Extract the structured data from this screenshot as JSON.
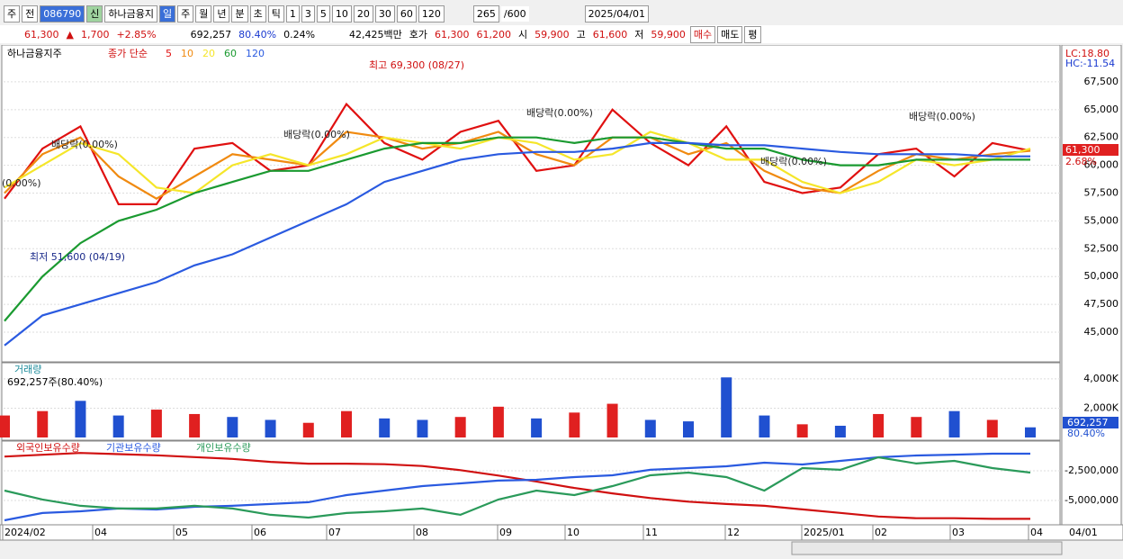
{
  "toolbar": {
    "market": "주",
    "prev": "전",
    "code": "086790",
    "badge": "신",
    "name": "하나금융지",
    "periods": [
      "일",
      "주",
      "월",
      "년",
      "분",
      "초",
      "틱"
    ],
    "intervals": [
      "1",
      "3",
      "5",
      "10",
      "20",
      "30",
      "60",
      "120"
    ],
    "count": "265",
    "max": "/600",
    "date": "2025/04/01"
  },
  "quote": {
    "price": "61,300",
    "arrow": "▲",
    "change": "1,700",
    "pct": "+2.85%",
    "volume": "692,257",
    "vol_ratio": "80.40%",
    "turnover": "0.24%",
    "amount": "42,425백만",
    "bid_label": "호가",
    "ask": "61,300",
    "bid": "61,200",
    "open_label": "시",
    "open": "59,900",
    "high_label": "고",
    "high": "61,600",
    "low_label": "저",
    "low": "59,900",
    "buy": "매수",
    "sell": "매도",
    "avg": "평"
  },
  "chart_data": [
    {
      "type": "line",
      "title": "하나금융지주",
      "legend_label": "종가 단순",
      "ylim": [
        42490,
        70650
      ],
      "yticks": [
        {
          "value": 45000,
          "label": "45,000"
        },
        {
          "value": 47500,
          "label": "47,500"
        },
        {
          "value": 50000,
          "label": "50,000"
        },
        {
          "value": 52500,
          "label": "52,500"
        },
        {
          "value": 55000,
          "label": "55,000"
        },
        {
          "value": 57500,
          "label": "57,500"
        },
        {
          "value": 60000,
          "label": "60,000"
        },
        {
          "value": 62500,
          "label": "62,500"
        },
        {
          "value": 65000,
          "label": "65,000"
        },
        {
          "value": 67500,
          "label": "67,500"
        }
      ],
      "series": [
        {
          "name": "5",
          "color": "#e01010",
          "values": [
            57000,
            61500,
            63500,
            56500,
            56500,
            61500,
            62000,
            59500,
            60000,
            65500,
            62000,
            60500,
            63000,
            64000,
            59500,
            60000,
            65000,
            62000,
            60000,
            63500,
            58500,
            57500,
            58000,
            61000,
            61500,
            59000,
            62000,
            61300
          ]
        },
        {
          "name": "10",
          "color": "#f08a10",
          "values": [
            57500,
            61000,
            62500,
            59000,
            57000,
            59000,
            61000,
            60500,
            60000,
            63000,
            62500,
            61500,
            62000,
            63000,
            61000,
            60000,
            62500,
            62500,
            61000,
            62000,
            59500,
            58000,
            57500,
            59500,
            61000,
            60500,
            61000,
            61300
          ]
        },
        {
          "name": "20",
          "color": "#f5e62a",
          "values": [
            58000,
            60000,
            62000,
            61000,
            58000,
            57500,
            60000,
            61000,
            60000,
            61000,
            62500,
            62000,
            61500,
            62500,
            62000,
            60500,
            61000,
            63000,
            62000,
            60500,
            60500,
            58500,
            57500,
            58500,
            60500,
            60000,
            60500,
            61500
          ]
        },
        {
          "name": "60",
          "color": "#1a9a30",
          "values": [
            46000,
            50000,
            53000,
            55000,
            56000,
            57500,
            58500,
            59500,
            59500,
            60500,
            61500,
            62000,
            62000,
            62500,
            62500,
            62000,
            62500,
            62500,
            62000,
            61500,
            61500,
            60500,
            60000,
            60000,
            60500,
            60500,
            60500,
            60500
          ]
        },
        {
          "name": "120",
          "color": "#2a5ae0",
          "values": [
            43800,
            46500,
            47500,
            48500,
            49500,
            51000,
            52000,
            53500,
            55000,
            56500,
            58500,
            59500,
            60500,
            61000,
            61200,
            61200,
            61500,
            62000,
            62000,
            61800,
            61800,
            61500,
            61200,
            61000,
            61000,
            61000,
            60800,
            60800
          ]
        }
      ],
      "annotations": [
        "최고 69,300 (08/27)",
        "최저 51,600 (04/19)",
        "배당락(0.00%)",
        "배당락(0.00%)",
        "배당락(0.00%)",
        "배당락(0.00%)",
        "배당락(0.00%)",
        "(0.00%)"
      ],
      "right_labels": {
        "lc": "LC:18.80",
        "hc": "HC:-11.54",
        "current": "61,300",
        "current_pct": "2.68%"
      }
    },
    {
      "type": "bar",
      "title": "거래량",
      "subtitle": "692,257주(80.40%)",
      "ylim": [
        0,
        4300000
      ],
      "yticks": [
        {
          "value": 2000000,
          "label": "2,000K"
        },
        {
          "value": 4000000,
          "label": "4,000K"
        }
      ],
      "values": [
        1500000,
        1800000,
        2500000,
        1500000,
        1900000,
        1600000,
        1400000,
        1200000,
        1000000,
        1800000,
        1300000,
        1200000,
        1400000,
        2100000,
        1300000,
        1700000,
        2300000,
        1200000,
        1100000,
        4100000,
        1500000,
        900000,
        800000,
        1600000,
        1400000,
        1800000,
        1200000,
        692257
      ],
      "colors": [
        "#e02020",
        "#e02020",
        "#2050d0",
        "#2050d0",
        "#e02020",
        "#e02020",
        "#2050d0",
        "#2050d0",
        "#e02020",
        "#e02020",
        "#2050d0",
        "#2050d0",
        "#e02020",
        "#e02020",
        "#2050d0",
        "#e02020",
        "#e02020",
        "#2050d0",
        "#2050d0",
        "#2050d0",
        "#2050d0",
        "#e02020",
        "#2050d0",
        "#e02020",
        "#e02020",
        "#2050d0",
        "#e02020",
        "#2050d0"
      ],
      "right_labels": {
        "current": "692,257",
        "ratio": "80.40%"
      }
    },
    {
      "type": "line",
      "ylim": [
        -7050000,
        -150000
      ],
      "yticks": [
        {
          "value": -2500000,
          "label": "-2,500,000"
        },
        {
          "value": -5000000,
          "label": "-5,000,000"
        }
      ],
      "series": [
        {
          "name": "외국인보유수량",
          "color": "#d01010",
          "values": [
            -1300000,
            -1150000,
            -1000000,
            -1100000,
            -1200000,
            -1350000,
            -1500000,
            -1750000,
            -1900000,
            -1900000,
            -1950000,
            -2100000,
            -2450000,
            -2900000,
            -3400000,
            -3950000,
            -4400000,
            -4800000,
            -5100000,
            -5300000,
            -5450000,
            -5750000,
            -6050000,
            -6350000,
            -6500000,
            -6500000,
            -6550000,
            -6550000
          ]
        },
        {
          "name": "기관보유수량",
          "color": "#2a5ae0",
          "values": [
            -6670000,
            -6060000,
            -5910000,
            -5680000,
            -5760000,
            -5530000,
            -5450000,
            -5300000,
            -5150000,
            -4550000,
            -4170000,
            -3790000,
            -3560000,
            -3330000,
            -3260000,
            -3030000,
            -2880000,
            -2420000,
            -2270000,
            -2120000,
            -1820000,
            -1970000,
            -1670000,
            -1360000,
            -1210000,
            -1140000,
            -1060000,
            -1060000
          ]
        },
        {
          "name": "개인보유수량",
          "color": "#2a9a5a",
          "values": [
            -4170000,
            -4920000,
            -5450000,
            -5680000,
            -5680000,
            -5450000,
            -5680000,
            -6210000,
            -6440000,
            -6060000,
            -5910000,
            -5680000,
            -6210000,
            -4920000,
            -4170000,
            -4550000,
            -3790000,
            -2880000,
            -2650000,
            -3030000,
            -4170000,
            -2270000,
            -2420000,
            -1360000,
            -1890000,
            -1670000,
            -2270000,
            -2650000
          ]
        }
      ]
    }
  ],
  "x_axis": {
    "labels": [
      "2024/02",
      "04",
      "05",
      "06",
      "07",
      "08",
      "09",
      "10",
      "11",
      "12",
      "2025/01",
      "02",
      "03",
      "04"
    ],
    "cursor": "04/01"
  }
}
